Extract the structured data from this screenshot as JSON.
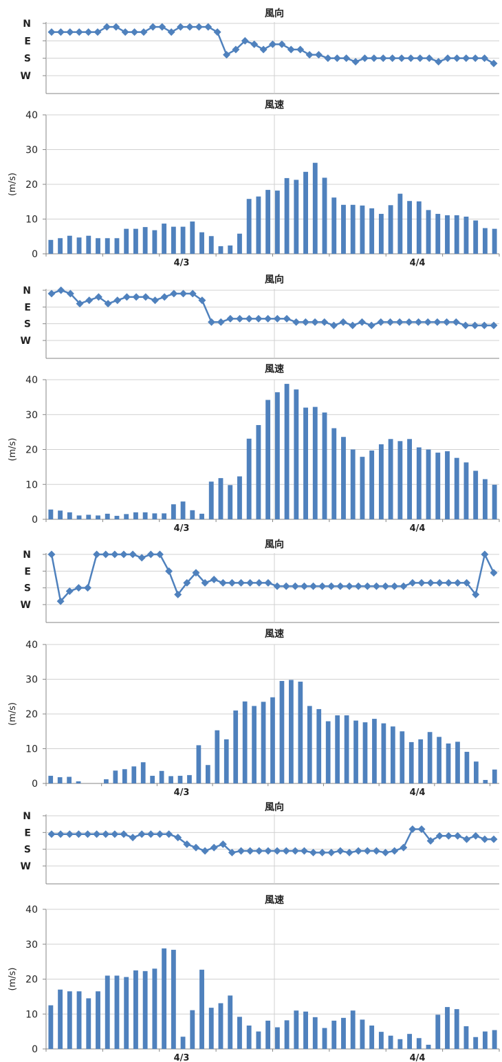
{
  "chart_data": [
    {
      "type": "line",
      "title": "風向",
      "ylabel": "",
      "y_ticks": [
        "N",
        "E",
        "S",
        "W"
      ],
      "x_tick_labels": [],
      "series": [
        {
          "values": [
            3.5,
            3.5,
            3.5,
            3.5,
            3.5,
            3.5,
            3.8,
            3.8,
            3.5,
            3.5,
            3.5,
            3.8,
            3.8,
            3.5,
            3.8,
            3.8,
            3.8,
            3.8,
            3.5,
            2.2,
            2.5,
            3.0,
            2.8,
            2.5,
            2.8,
            2.8,
            2.5,
            2.5,
            2.2,
            2.2,
            2.0,
            2.0,
            2.0,
            1.8,
            2.0,
            2.0,
            2.0,
            2.0,
            2.0,
            2.0,
            2.0,
            2.0,
            1.8,
            2.0,
            2.0,
            2.0,
            2.0,
            2.0,
            1.7
          ]
        }
      ]
    },
    {
      "type": "bar",
      "title": "風速",
      "ylabel": "(m/s)",
      "ylim": [
        0,
        40
      ],
      "y_ticks": [
        0,
        10,
        20,
        30,
        40
      ],
      "x_tick_labels": [
        "4/3",
        "4/4"
      ],
      "values": [
        4,
        4.5,
        5.2,
        4.7,
        5.2,
        4.5,
        4.5,
        4.5,
        7.2,
        7.2,
        7.7,
        6.8,
        8.7,
        7.8,
        7.8,
        9.3,
        6.2,
        5.1,
        2.2,
        2.4,
        5.8,
        15.8,
        16.5,
        18.4,
        18.2,
        21.8,
        21.3,
        23.6,
        26.2,
        21.9,
        16.2,
        14.1,
        14.1,
        13.9,
        13.1,
        11.5,
        14.0,
        17.3,
        15.2,
        15.1,
        12.6,
        11.5,
        11.1,
        11.1,
        10.7,
        9.6,
        7.4,
        7.2
      ]
    },
    {
      "type": "line",
      "title": "風向",
      "ylabel": "",
      "y_ticks": [
        "N",
        "E",
        "S",
        "W"
      ],
      "x_tick_labels": [],
      "series": [
        {
          "values": [
            3.8,
            4.0,
            3.8,
            3.2,
            3.4,
            3.6,
            3.2,
            3.4,
            3.6,
            3.6,
            3.6,
            3.4,
            3.6,
            3.8,
            3.8,
            3.8,
            3.4,
            2.1,
            2.1,
            2.3,
            2.3,
            2.3,
            2.3,
            2.3,
            2.3,
            2.3,
            2.1,
            2.1,
            2.1,
            2.1,
            1.9,
            2.1,
            1.9,
            2.1,
            1.9,
            2.1,
            2.1,
            2.1,
            2.1,
            2.1,
            2.1,
            2.1,
            2.1,
            2.1,
            1.9,
            1.9,
            1.9,
            1.9
          ]
        }
      ]
    },
    {
      "type": "bar",
      "title": "風速",
      "ylabel": "(m/s)",
      "ylim": [
        0,
        40
      ],
      "y_ticks": [
        0,
        10,
        20,
        30,
        40
      ],
      "x_tick_labels": [
        "4/3",
        "4/4"
      ],
      "values": [
        2.8,
        2.5,
        2.0,
        1.1,
        1.3,
        1.1,
        1.6,
        1.0,
        1.5,
        2.0,
        2.0,
        1.7,
        1.7,
        4.3,
        5.1,
        2.6,
        1.6,
        10.8,
        11.8,
        9.8,
        12.3,
        23.1,
        27.0,
        34.2,
        36.4,
        38.8,
        37.2,
        32.0,
        32.2,
        30.6,
        26.1,
        23.6,
        20.0,
        17.9,
        19.7,
        21.5,
        23.0,
        22.4,
        23.0,
        20.6,
        20.0,
        19.1,
        19.5,
        17.6,
        16.3,
        13.9,
        11.5,
        9.9
      ]
    },
    {
      "type": "line",
      "title": "風向",
      "ylabel": "",
      "y_ticks": [
        "N",
        "E",
        "S",
        "W"
      ],
      "x_tick_labels": [],
      "series": [
        {
          "values": [
            4.0,
            1.2,
            1.8,
            2.0,
            2.0,
            4.0,
            4.0,
            4.0,
            4.0,
            4.0,
            3.8,
            4.0,
            4.0,
            3.0,
            1.6,
            2.3,
            2.9,
            2.3,
            2.5,
            2.3,
            2.3,
            2.3,
            2.3,
            2.3,
            2.3,
            2.1,
            2.1,
            2.1,
            2.1,
            2.1,
            2.1,
            2.1,
            2.1,
            2.1,
            2.1,
            2.1,
            2.1,
            2.1,
            2.1,
            2.1,
            2.3,
            2.3,
            2.3,
            2.3,
            2.3,
            2.3,
            2.3,
            1.6,
            4.0,
            2.9
          ]
        }
      ]
    },
    {
      "type": "bar",
      "title": "風速",
      "ylabel": "(m/s)",
      "ylim": [
        0,
        40
      ],
      "y_ticks": [
        0,
        10,
        20,
        30,
        40
      ],
      "x_tick_labels": [
        "4/3",
        "4/4"
      ],
      "values": [
        2.2,
        1.8,
        1.9,
        0.6,
        0,
        0,
        1.2,
        3.7,
        4.1,
        4.9,
        6.1,
        2.2,
        3.6,
        2.1,
        2.2,
        2.4,
        11.0,
        5.3,
        15.3,
        12.7,
        21.0,
        23.6,
        22.3,
        23.5,
        24.8,
        29.5,
        29.8,
        29.3,
        22.3,
        21.4,
        17.9,
        19.6,
        19.6,
        18.1,
        17.6,
        18.6,
        17.3,
        16.4,
        15.0,
        11.9,
        12.7,
        14.8,
        13.4,
        11.5,
        12.0,
        9.1,
        6.3,
        1.0,
        4.0
      ]
    },
    {
      "type": "line",
      "title": "風向",
      "ylabel": "",
      "y_ticks": [
        "N",
        "E",
        "S",
        "W"
      ],
      "x_tick_labels": [],
      "series": [
        {
          "values": [
            2.9,
            2.9,
            2.9,
            2.9,
            2.9,
            2.9,
            2.9,
            2.9,
            2.9,
            2.7,
            2.9,
            2.9,
            2.9,
            2.9,
            2.7,
            2.3,
            2.1,
            1.9,
            2.1,
            2.3,
            1.8,
            1.9,
            1.9,
            1.9,
            1.9,
            1.9,
            1.9,
            1.9,
            1.9,
            1.8,
            1.8,
            1.8,
            1.9,
            1.8,
            1.9,
            1.9,
            1.9,
            1.8,
            1.9,
            2.1,
            3.2,
            3.2,
            2.5,
            2.8,
            2.8,
            2.8,
            2.6,
            2.8,
            2.6,
            2.6
          ]
        }
      ]
    },
    {
      "type": "bar",
      "title": "風速",
      "ylabel": "(m/s)",
      "ylim": [
        0,
        40
      ],
      "y_ticks": [
        0,
        10,
        20,
        30,
        40
      ],
      "x_tick_labels": [
        "4/3",
        "4/4"
      ],
      "values": [
        12.5,
        17.0,
        16.5,
        16.5,
        14.5,
        16.5,
        21.0,
        21.0,
        20.6,
        22.5,
        22.3,
        23.0,
        28.8,
        28.4,
        3.5,
        11.1,
        22.7,
        11.8,
        13.1,
        15.3,
        9.2,
        6.7,
        5.0,
        8.1,
        6.2,
        8.2,
        11.0,
        10.7,
        9.1,
        6.0,
        8.1,
        8.9,
        11.0,
        8.4,
        6.7,
        4.9,
        3.8,
        2.8,
        4.3,
        3.1,
        1.2,
        9.8,
        12.0,
        11.4,
        6.5,
        3.4,
        5.0,
        5.4
      ]
    }
  ]
}
